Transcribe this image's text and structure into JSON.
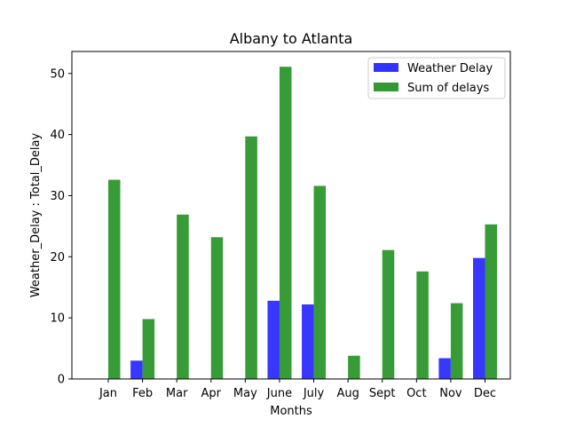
{
  "chart_data": {
    "type": "bar",
    "title": "Albany to Atlanta",
    "xlabel": "Months",
    "ylabel": "Weather_Delay : Total_Delay",
    "categories": [
      "Jan",
      "Feb",
      "Mar",
      "Apr",
      "May",
      "June",
      "July",
      "Aug",
      "Sept",
      "Oct",
      "Nov",
      "Dec"
    ],
    "series": [
      {
        "name": "Weather Delay",
        "color": "#3333ff",
        "values": [
          0,
          3.0,
          0,
          0,
          0,
          12.8,
          12.2,
          0,
          0,
          0,
          3.4,
          19.8
        ]
      },
      {
        "name": "Sum of delays",
        "color": "#339933",
        "values": [
          32.6,
          9.8,
          26.9,
          23.2,
          39.7,
          51.1,
          31.6,
          3.8,
          21.1,
          17.6,
          12.4,
          25.3
        ]
      }
    ],
    "yticks": [
      0,
      10,
      20,
      30,
      40,
      50
    ],
    "ylim": [
      0,
      53.6
    ],
    "grid": false,
    "legend_position": "top-right"
  }
}
